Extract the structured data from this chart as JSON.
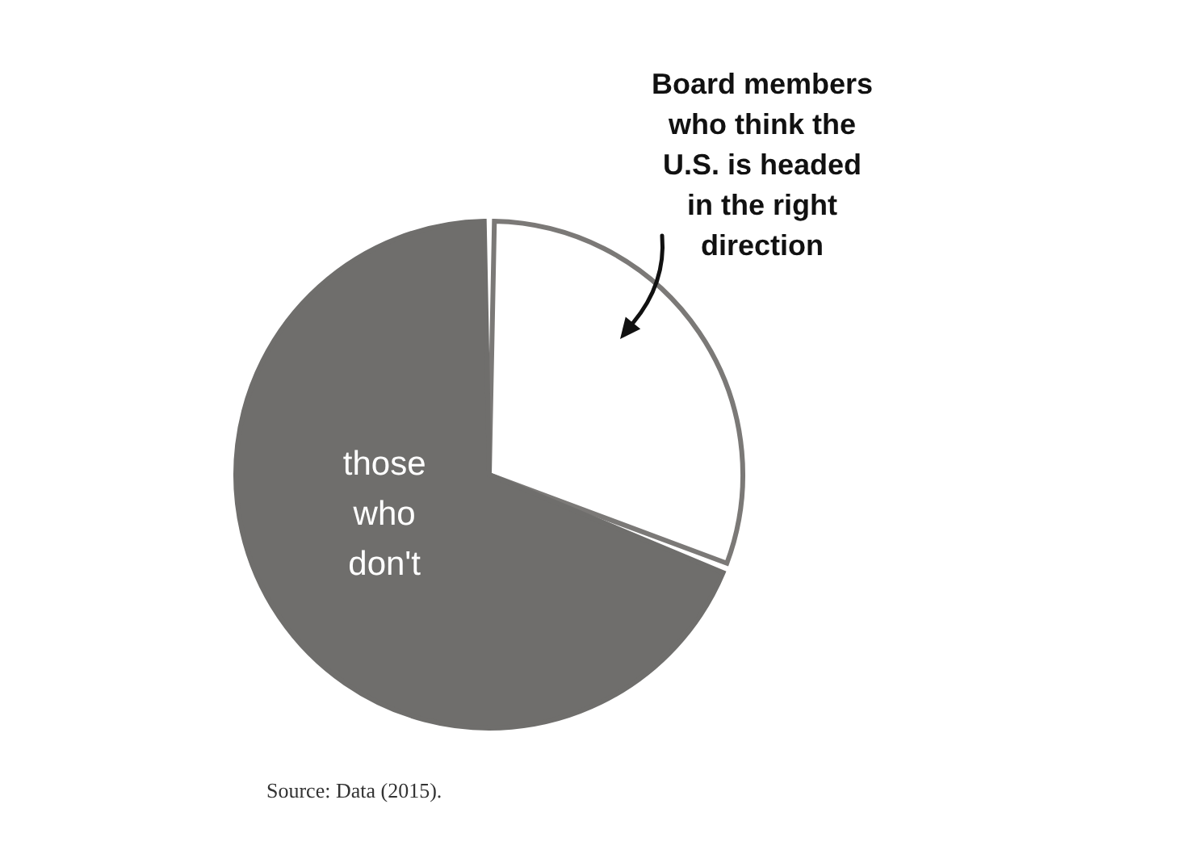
{
  "chart_data": {
    "type": "pie",
    "categories": [
      "Board members who think the U.S. is headed in the right direction",
      "those who don't"
    ],
    "values": [
      31,
      69
    ],
    "colors": [
      "#ffffff",
      "#6f6e6c"
    ],
    "annotations": [
      "Source: Data (2015)."
    ]
  }
}
